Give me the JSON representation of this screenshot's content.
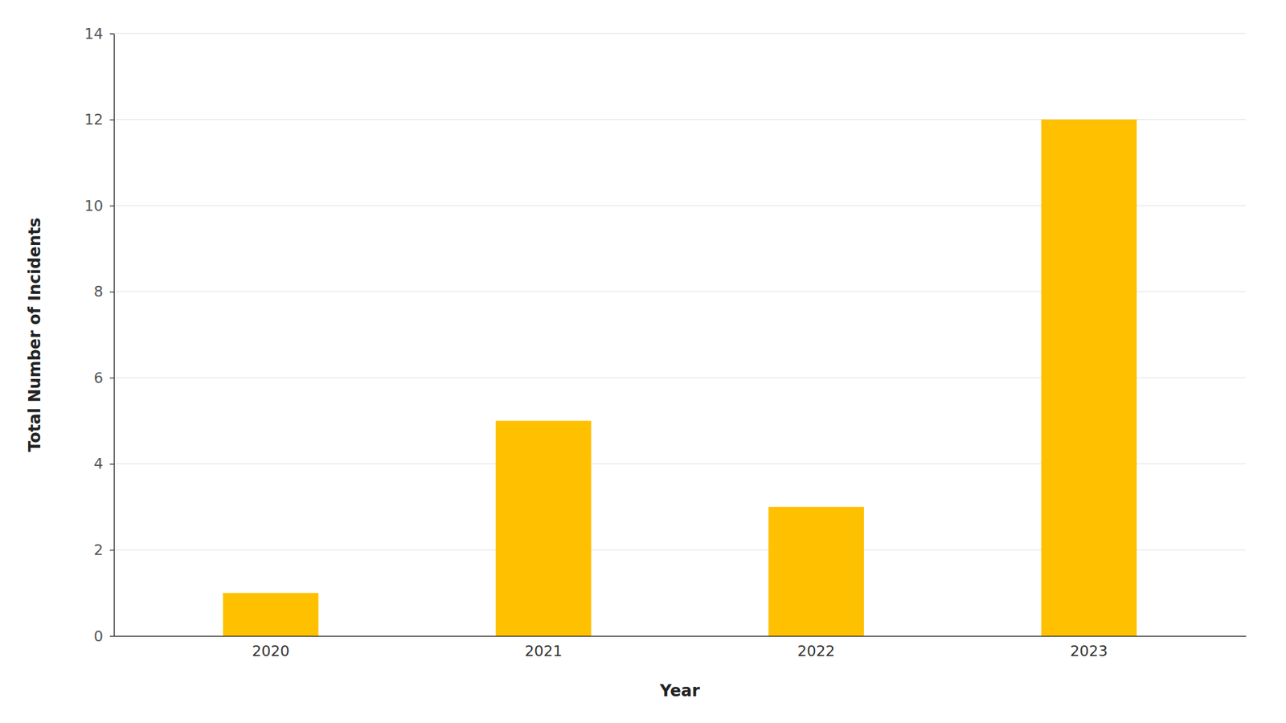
{
  "chart_data": {
    "type": "bar",
    "categories": [
      "2020",
      "2021",
      "2022",
      "2023"
    ],
    "values": [
      1,
      5,
      3,
      12
    ],
    "color": "#FFC000",
    "xlabel": "Year",
    "ylabel": "Total Number of Incidents",
    "ylim": [
      0,
      14
    ],
    "yticks": [
      0,
      2,
      4,
      6,
      8,
      10,
      12,
      14
    ],
    "grid": true
  }
}
